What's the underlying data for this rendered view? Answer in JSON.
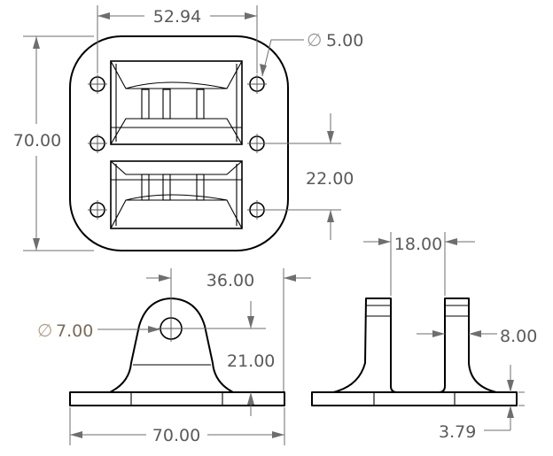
{
  "drawing": {
    "top_view": {
      "width_hole_spacing": "52.94",
      "hole_diameter": "5.00",
      "height": "70.00",
      "hole_spacing_vertical": "22.00"
    },
    "front_view": {
      "lug_width": "36.00",
      "pin_hole_diameter": "7.00",
      "pin_height": "21.00",
      "base_width": "70.00"
    },
    "side_view": {
      "lug_gap": "18.00",
      "lug_thickness": "8.00",
      "base_thickness": "3.79"
    },
    "diameter_symbol": "∅",
    "colors": {
      "outline": "#000000",
      "dimension": "#6e6e6e",
      "highlight_text": "#7a6a58"
    }
  }
}
